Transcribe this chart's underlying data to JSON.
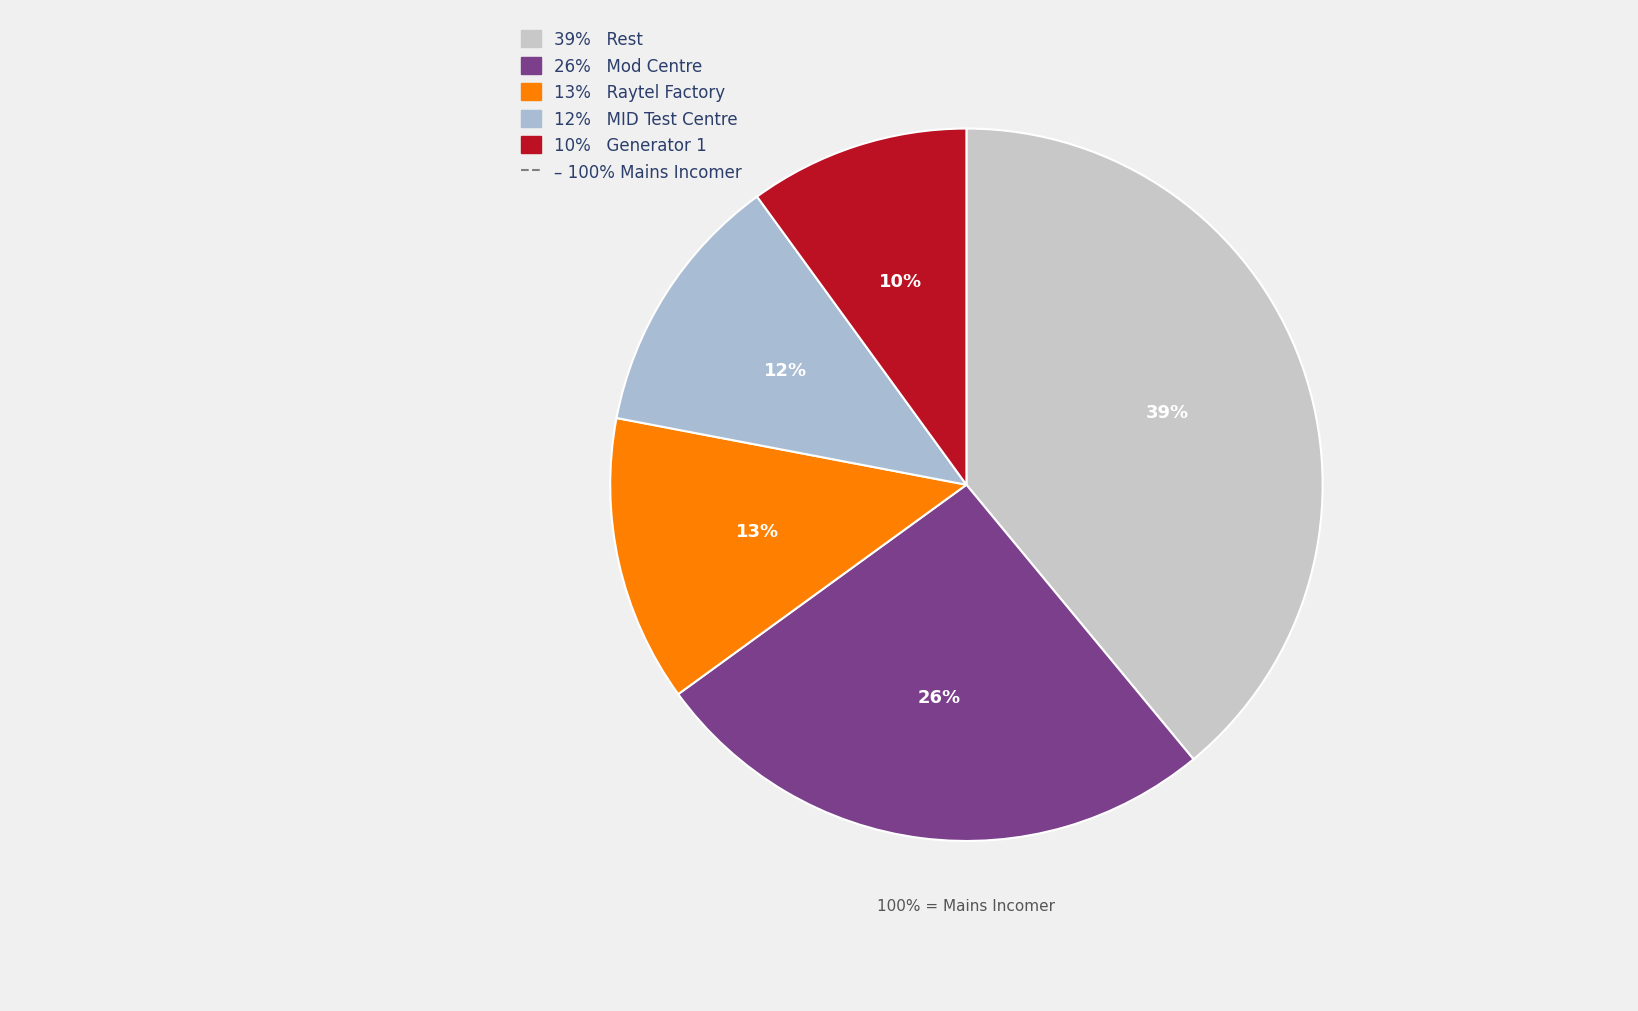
{
  "title": "100% = Mains Incomer",
  "slices": [
    {
      "label": "Rest",
      "pct": 39,
      "color": "#c8c8c8"
    },
    {
      "label": "Mod Centre",
      "pct": 26,
      "color": "#7b3f8c"
    },
    {
      "label": "Raytel Factory",
      "pct": 13,
      "color": "#ff8000"
    },
    {
      "label": "MID Test Centre",
      "pct": 12,
      "color": "#a8bcd4"
    },
    {
      "label": "Generator 1",
      "pct": 10,
      "color": "#bb1122"
    }
  ],
  "background_color": "#ffffff",
  "panel_background": "#f0f0f0",
  "legend_text_color": "#2c3e6b",
  "label_color": "#ffffff",
  "label_fontsize": 13,
  "legend_fontsize": 12,
  "title_fontsize": 11,
  "title_color": "#555555"
}
